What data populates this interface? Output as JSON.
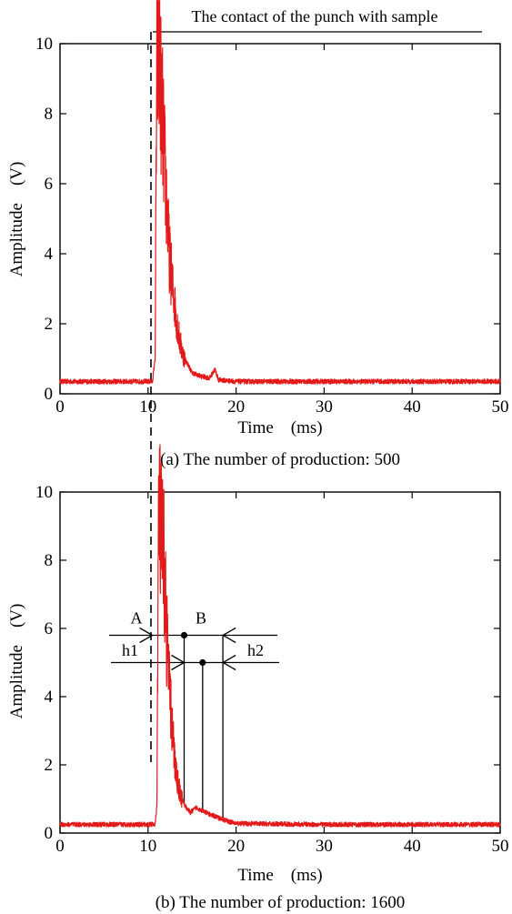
{
  "figure_header": "The contact of the punch with sample",
  "colors": {
    "trace": "#e31a1a",
    "axes": "#000000"
  },
  "chart_data": [
    {
      "type": "line",
      "caption": "(a) The number of production: 500",
      "xlabel": "Time    (ms)",
      "ylabel": "Amplitude    (V)",
      "xlim": [
        0,
        50
      ],
      "ylim": [
        0,
        10
      ],
      "xticks": [
        0,
        10,
        20,
        30,
        40,
        50
      ],
      "yticks": [
        0,
        2,
        4,
        6,
        8,
        10
      ],
      "grid": false,
      "series": [
        {
          "baseline": 0.35,
          "x": [
            0,
            10.5,
            10.8,
            11.0,
            11.3,
            11.6,
            12.0,
            12.4,
            12.8,
            13.2,
            13.6,
            14.0,
            14.5,
            15.0,
            16.0,
            17.0,
            17.6,
            18.0,
            20.0,
            30.0,
            40.0,
            50.0
          ],
          "y": [
            0.35,
            0.35,
            1.0,
            9.7,
            9.4,
            8.0,
            6.0,
            4.0,
            3.0,
            2.2,
            1.5,
            1.1,
            0.85,
            0.6,
            0.5,
            0.45,
            0.7,
            0.4,
            0.35,
            0.35,
            0.35,
            0.35
          ]
        }
      ]
    },
    {
      "type": "line",
      "caption": "(b) The number of production: 1600",
      "xlabel": "Time    (ms)",
      "ylabel": "Amplitude    (V)",
      "xlim": [
        0,
        50
      ],
      "ylim": [
        0,
        10
      ],
      "xticks": [
        0,
        10,
        20,
        30,
        40,
        50
      ],
      "yticks": [
        0,
        2,
        4,
        6,
        8,
        10
      ],
      "grid": false,
      "annotations": {
        "A": {
          "label": "A",
          "x": 10.5
        },
        "B": {
          "label": "B",
          "x": 14.1,
          "y": 5.8
        },
        "h1": {
          "label": "h1",
          "x": 18.5,
          "y": 5.0
        },
        "h2": {
          "label": "h2",
          "x": 16.2,
          "y": 5.0
        }
      },
      "series": [
        {
          "baseline": 0.25,
          "x": [
            0,
            10.8,
            11.0,
            11.2,
            11.5,
            11.8,
            12.1,
            12.4,
            12.7,
            13.0,
            13.3,
            13.7,
            14.2,
            14.8,
            15.5,
            16.2,
            17.0,
            18.0,
            19.0,
            20.0,
            30.0,
            40.0,
            50.0
          ],
          "y": [
            0.25,
            0.25,
            0.8,
            9.5,
            8.6,
            8.0,
            6.0,
            4.3,
            3.2,
            2.2,
            1.6,
            1.1,
            0.8,
            0.6,
            0.75,
            0.65,
            0.55,
            0.45,
            0.35,
            0.28,
            0.25,
            0.25,
            0.25
          ]
        }
      ]
    }
  ]
}
